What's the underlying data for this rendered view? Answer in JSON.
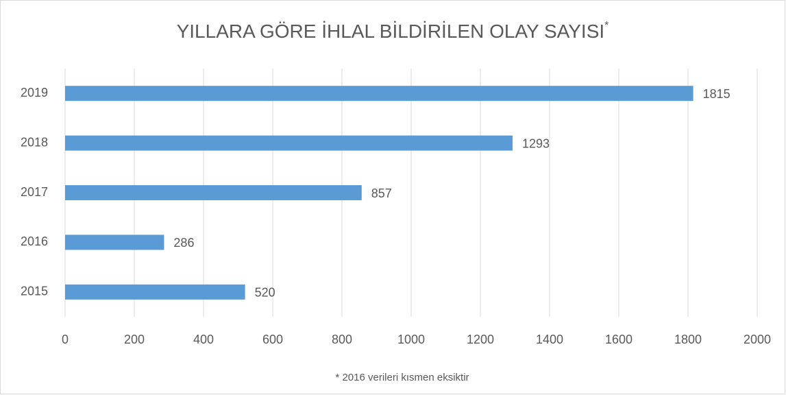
{
  "chart_data": {
    "type": "hbar",
    "title": "YILLARA GÖRE İHLAL BİLDİRİLEN OLAY SAYISI",
    "title_superscript": "*",
    "footnote": "* 2016 verileri kısmen eksiktir",
    "categories": [
      "2019",
      "2018",
      "2017",
      "2016",
      "2015"
    ],
    "values": [
      1815,
      1293,
      857,
      286,
      520
    ],
    "color": "#5b9bd5",
    "xlim": [
      0,
      2000
    ],
    "xticks": [
      0,
      200,
      400,
      600,
      800,
      1000,
      1200,
      1400,
      1600,
      1800,
      2000
    ],
    "grid": true
  }
}
